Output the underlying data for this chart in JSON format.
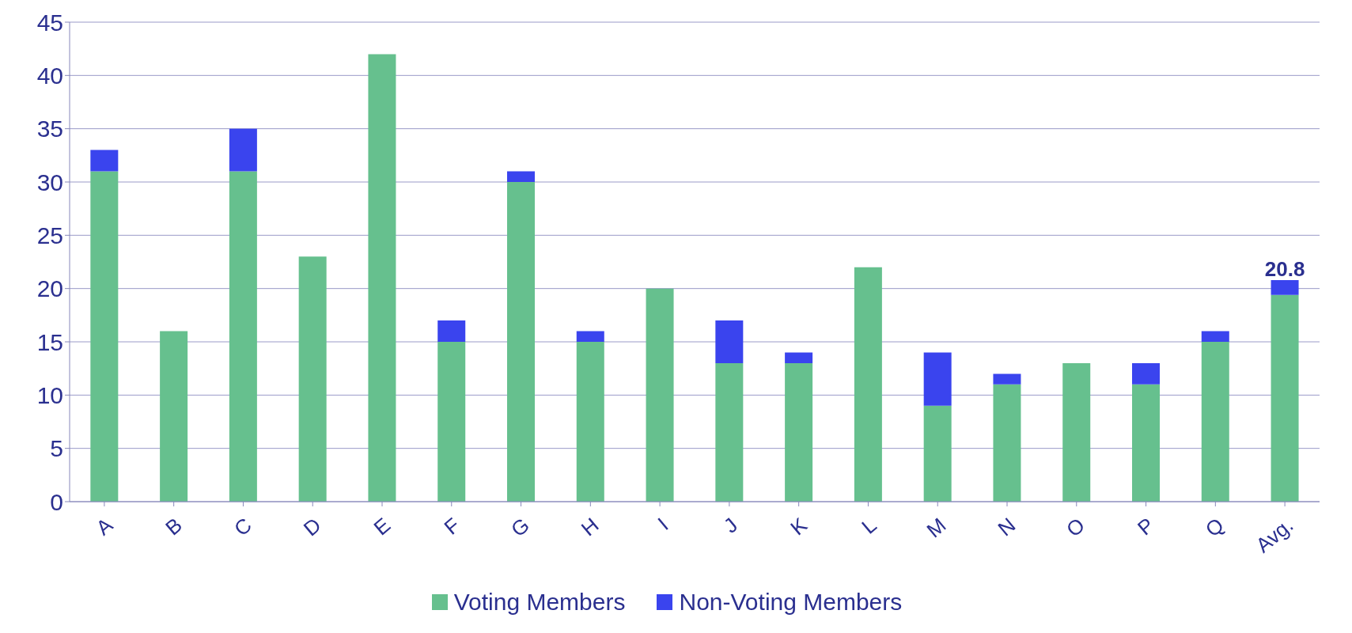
{
  "chart_data": {
    "type": "bar",
    "stacked": true,
    "categories": [
      "A",
      "B",
      "C",
      "D",
      "E",
      "F",
      "G",
      "H",
      "I",
      "J",
      "K",
      "L",
      "M",
      "N",
      "O",
      "P",
      "Q",
      "Avg."
    ],
    "series": [
      {
        "name": "Voting Members",
        "color": "#66c08e",
        "values": [
          31,
          16,
          31,
          23,
          42,
          15,
          30,
          15,
          20,
          13,
          13,
          22,
          9,
          11,
          13,
          11,
          15,
          19.4
        ]
      },
      {
        "name": "Non-Voting Members",
        "color": "#3a44ee",
        "values": [
          2,
          0,
          4,
          0,
          0,
          2,
          1,
          1,
          0,
          4,
          1,
          0,
          5,
          1,
          0,
          2,
          1,
          1.4
        ]
      }
    ],
    "totals": [
      null,
      null,
      null,
      null,
      null,
      null,
      null,
      null,
      null,
      null,
      null,
      null,
      null,
      null,
      null,
      null,
      null,
      "20.8"
    ],
    "ylim": [
      0,
      45
    ],
    "yticks": [
      0,
      5,
      10,
      15,
      20,
      25,
      30,
      35,
      40,
      45
    ],
    "grid": "y",
    "legend": "bottom"
  }
}
